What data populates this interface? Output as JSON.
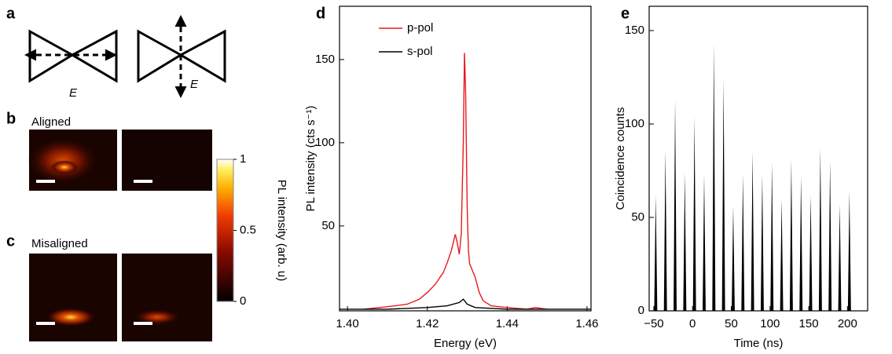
{
  "panel_labels": [
    "a",
    "b",
    "c",
    "d",
    "e"
  ],
  "diagram": {
    "field_labels": [
      "E",
      "E"
    ]
  },
  "maps": {
    "aligned": "Aligned",
    "misaligned": "Misaligned"
  },
  "chart_data": [
    {
      "type": "line",
      "xlabel": "Energy (eV)",
      "ylabel": "PL intensity (cts s⁻¹)",
      "xlim": [
        1.398,
        1.461
      ],
      "xticks": [
        {
          "value": 1.4,
          "label": "1.40"
        },
        1.42,
        1.44,
        1.46
      ],
      "ylim": [
        -1,
        182
      ],
      "yticks": [
        50,
        100,
        150
      ],
      "series": [
        {
          "name": "p-pol",
          "color": "#e8191f",
          "x": [
            1.404,
            1.408,
            1.412,
            1.415,
            1.418,
            1.42,
            1.422,
            1.424,
            1.425,
            1.426,
            1.427,
            1.4275,
            1.428,
            1.4285,
            1.429,
            1.4293,
            1.4296,
            1.43,
            1.4303,
            1.4306,
            1.431,
            1.432,
            1.433,
            1.434,
            1.436,
            1.44,
            1.445,
            1.447,
            1.45
          ],
          "values": [
            0,
            1,
            2,
            3,
            6,
            10,
            15,
            22,
            28,
            35,
            45,
            40,
            33,
            45,
            100,
            154,
            130,
            60,
            35,
            27,
            25,
            19,
            10,
            5,
            2,
            1,
            0,
            1,
            0
          ]
        },
        {
          "name": "s-pol",
          "color": "#000000",
          "x": [
            1.398,
            1.41,
            1.42,
            1.425,
            1.428,
            1.429,
            1.43,
            1.432,
            1.44,
            1.45,
            1.461
          ],
          "values": [
            0,
            0,
            1,
            2,
            4,
            6,
            3,
            1,
            0,
            0,
            0
          ]
        }
      ]
    },
    {
      "type": "peaks",
      "xlabel": "Time (ns)",
      "ylabel": "Coincidence counts",
      "color": "#000000",
      "xlim": [
        -56,
        226
      ],
      "xticks": [
        {
          "value": -50,
          "label": "−50"
        },
        0,
        50,
        100,
        150,
        200
      ],
      "ylim": [
        0,
        163
      ],
      "yticks": [
        0,
        50,
        100,
        150
      ],
      "x": [
        -47.5,
        -35,
        -22.5,
        -10,
        2.5,
        15,
        27.5,
        40,
        52.5,
        65,
        77.5,
        90,
        102.5,
        115,
        127.5,
        140,
        152.5,
        165,
        177.5,
        190,
        202.5
      ],
      "values": [
        62,
        86,
        113,
        74,
        104,
        73,
        143,
        124,
        56,
        73,
        85,
        73,
        79,
        60,
        81,
        72,
        62,
        87,
        80,
        57,
        64
      ]
    },
    {
      "type": "colorbar",
      "ylabel": "PL intensity (arb. u)",
      "ylim": [
        0,
        1
      ],
      "yticks": [
        0,
        0.5,
        1
      ]
    }
  ]
}
